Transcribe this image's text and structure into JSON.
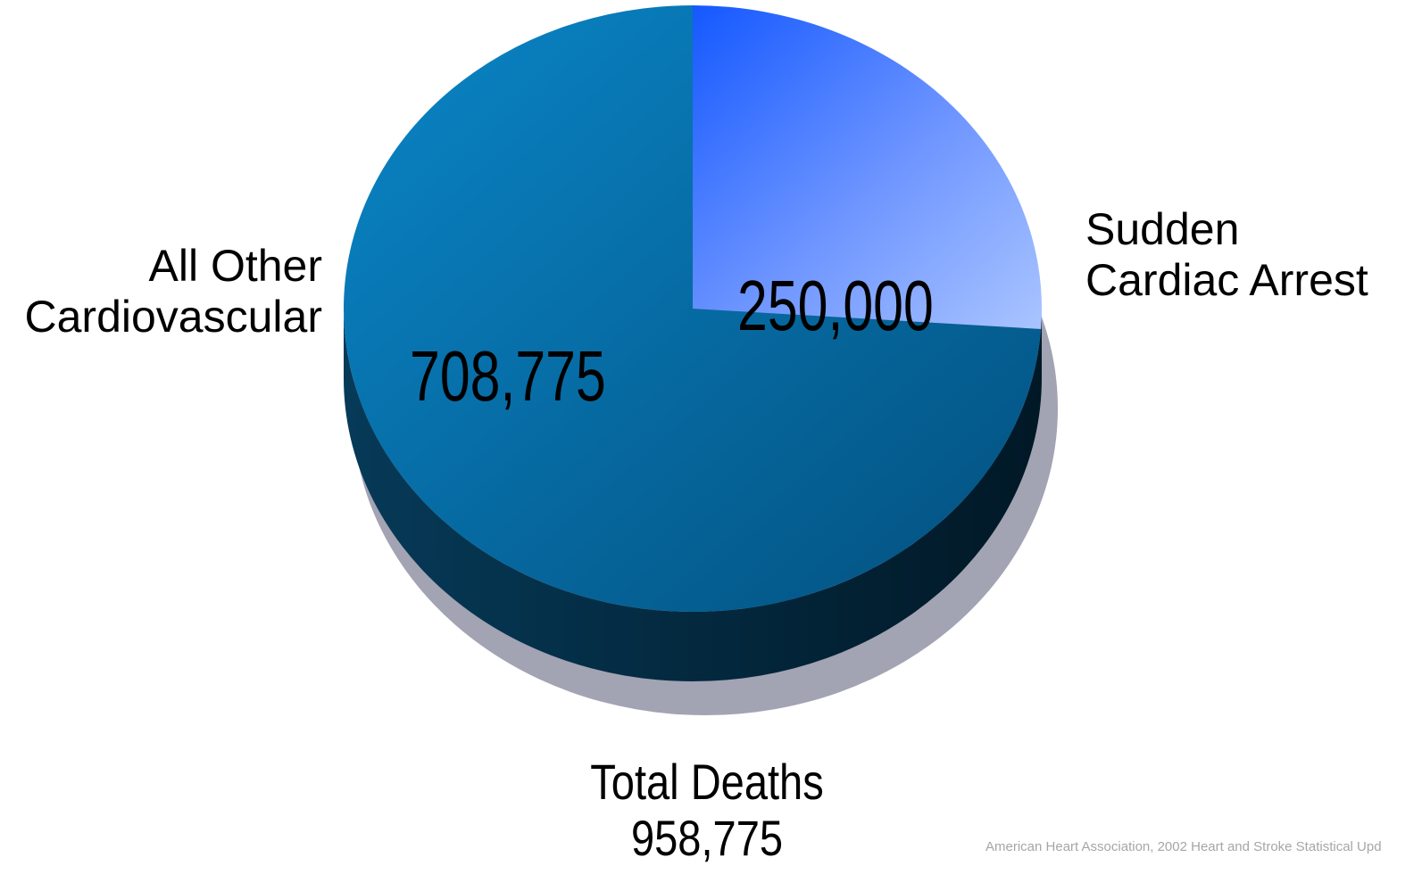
{
  "chart_data": {
    "type": "pie",
    "slices": [
      {
        "label": [
          "Sudden",
          "Cardiac Arrest"
        ],
        "value": 250000,
        "value_label": "250,000",
        "color": "#2e6bff"
      },
      {
        "label": [
          "All Other",
          "Cardiovascular"
        ],
        "value": 708775,
        "value_label": "708,775",
        "color": "#0a6ea8"
      }
    ],
    "total": {
      "title": "Total Deaths",
      "value": 958775,
      "value_label": "958,775"
    },
    "style": "3d-tilted",
    "legend": "none"
  },
  "footnote": "American Heart Association, 2002 Heart and Stroke Statistical Upd"
}
